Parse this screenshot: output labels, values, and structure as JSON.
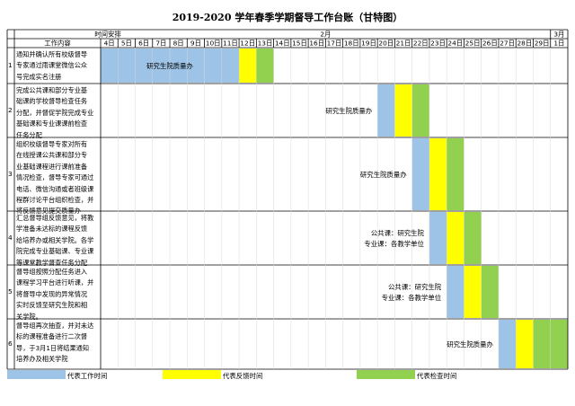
{
  "title": "2019-2020 学年春季学期督导工作台账（甘特图）",
  "header": {
    "time_label": "时间安排",
    "content_label": "工作内容",
    "month_feb": "2月",
    "month_mar": "3月"
  },
  "days": [
    "4日",
    "5日",
    "6日",
    "7日",
    "8日",
    "9日",
    "10日",
    "11日",
    "12日",
    "13日",
    "14日",
    "15日",
    "16日",
    "17日",
    "18日",
    "19日",
    "20日",
    "21日",
    "22日",
    "23日",
    "24日",
    "25日",
    "26日",
    "27日",
    "28日",
    "29日",
    "1日"
  ],
  "tasks": [
    {
      "no": "1",
      "lines": [
        "通知并确认所有校级督导",
        "专家通过雨课堂微信公众",
        "号完成实名注册"
      ],
      "labels": [
        "研究生院质量办"
      ],
      "work": [
        0,
        7
      ],
      "feedback": [
        8,
        8
      ],
      "check": [
        9,
        9
      ]
    },
    {
      "no": "2",
      "lines": [
        "完成公共课和部分专业基",
        "础课的学校督导检查任务",
        "分配，并督促学院完成专业",
        "基础课和专业课课前检查",
        "任务分配"
      ],
      "labels": [
        "研究生院质量办"
      ],
      "work": [
        16,
        16
      ],
      "feedback": [
        17,
        17
      ],
      "check": [
        18,
        18
      ]
    },
    {
      "no": "3",
      "lines": [
        "组织校级督导专家对所有",
        "在线授课公共课和部分专",
        "业基础课程进行课前准备",
        "情况检查，督导专家可通过",
        "电话、微信沟通或者班级课",
        "程群讨论平台组织检查，并",
        "将反馈意见提交质量办"
      ],
      "labels": [
        "研究生院质量办"
      ],
      "work": [
        18,
        18
      ],
      "feedback": [
        19,
        19
      ],
      "check": [
        20,
        20
      ]
    },
    {
      "no": "4",
      "lines": [
        "汇总督导组反馈意见，将教",
        "学准备未达标的课程反馈",
        "给培养办或相关学院。各学",
        "院完成专业基础课、专业课",
        "等课堂教学督查任务分配"
      ],
      "labels": [
        "公共课：研究生院",
        "专业课：各教学单位"
      ],
      "work": [
        19,
        19
      ],
      "feedback": [
        20,
        20
      ],
      "check": [
        21,
        21
      ]
    },
    {
      "no": "5",
      "lines": [
        "督导组按照分配任务进入",
        "课程学习平台进行听课，并",
        "将督导中发现的异常情况",
        "实时反馈至研究生院和相",
        "关学院。"
      ],
      "labels": [
        "公共课：研究生院",
        "专业课：各教学单位"
      ],
      "work": [
        20,
        20
      ],
      "feedback": [
        21,
        21
      ],
      "check": [
        22,
        22
      ]
    },
    {
      "no": "6",
      "lines": [
        "督导组再次抽查，并对未达",
        "标的课程准备进行二次督",
        "导，于3月1日将结果通知",
        "培养办及相关学院"
      ],
      "labels": [
        "研究生院质量办"
      ],
      "work": [
        23,
        23
      ],
      "feedback": [
        24,
        24
      ],
      "check": [
        25,
        26
      ]
    }
  ],
  "legend": [
    {
      "name": "代表工作时间",
      "color": "#9dc3e6"
    },
    {
      "name": "代表反馈时间",
      "color": "#ffff00"
    },
    {
      "name": "代表检查时间",
      "color": "#92d050"
    }
  ],
  "colors": {
    "work": "#9dc3e6",
    "feedback": "#ffff00",
    "check": "#92d050",
    "grid": "#000000"
  }
}
